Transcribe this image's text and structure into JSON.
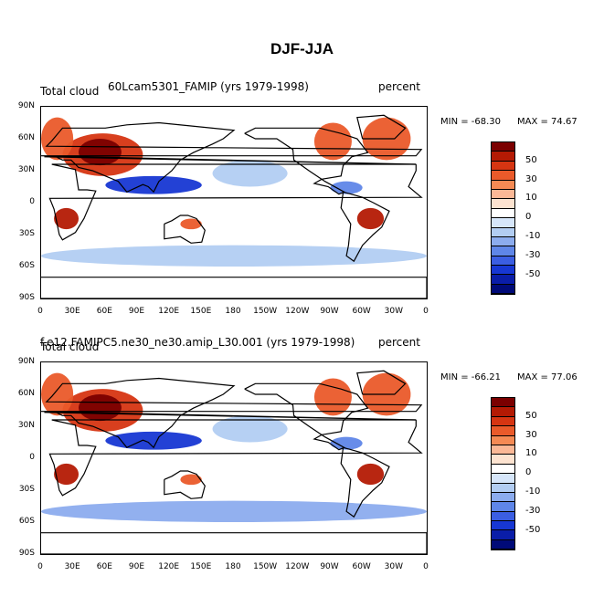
{
  "title": "DJF-JJA",
  "panels": [
    {
      "left_label": "Total cloud",
      "center_label": "60Lcam5301_FAMIP (yrs 1979-1998)",
      "right_label": "percent",
      "min": "MIN = -68.30",
      "max": "MAX =  74.67"
    },
    {
      "left_label": "Total cloud",
      "center_label": "f.e12.FAMIPC5.ne30_ne30.amip_L30.001 (yrs 1979-1998)",
      "right_label": "percent",
      "min": "MIN = -66.21",
      "max": "MAX =  77.06"
    }
  ],
  "lat_ticks": [
    "90N",
    "60N",
    "30N",
    "0",
    "30S",
    "60S",
    "90S"
  ],
  "lon_ticks": [
    "0",
    "30E",
    "60E",
    "90E",
    "120E",
    "150E",
    "180",
    "150W",
    "120W",
    "90W",
    "60W",
    "30W",
    "0"
  ],
  "colorbar": {
    "labels": [
      "50",
      "30",
      "10",
      "0",
      "-10",
      "-30",
      "-50"
    ],
    "colors": [
      "#7b0000",
      "#b41a04",
      "#d63512",
      "#ea5a2a",
      "#f58a54",
      "#fbb896",
      "#fde3d0",
      "#ffffff",
      "#d6e6fa",
      "#b2cdf2",
      "#8cacee",
      "#5f86e8",
      "#3b5ee2",
      "#1737d3",
      "#0a1da8",
      "#000a78"
    ]
  },
  "chart_data": [
    {
      "type": "heatmap",
      "title": "60Lcam5301_FAMIP (yrs 1979-1998)",
      "variable": "Total cloud",
      "units": "percent",
      "season_difference": "DJF-JJA",
      "min": -68.3,
      "max": 74.67,
      "x_range": [
        0,
        360
      ],
      "y_range": [
        -90,
        90
      ],
      "contour_levels": [
        -60,
        -50,
        -40,
        -30,
        -20,
        -10,
        -5,
        0,
        5,
        10,
        20,
        30,
        40,
        50,
        60
      ],
      "regions": [
        {
          "lon": [
            20,
            95
          ],
          "lat": [
            25,
            65
          ],
          "value": 40
        },
        {
          "lon": [
            35,
            75
          ],
          "lat": [
            35,
            60
          ],
          "value": 60
        },
        {
          "lon": [
            0,
            30
          ],
          "lat": [
            40,
            80
          ],
          "value": 30
        },
        {
          "lon": [
            255,
            290
          ],
          "lat": [
            40,
            75
          ],
          "value": 35
        },
        {
          "lon": [
            300,
            345
          ],
          "lat": [
            40,
            80
          ],
          "value": 30
        },
        {
          "lon": [
            12,
            35
          ],
          "lat": [
            -25,
            -5
          ],
          "value": 50
        },
        {
          "lon": [
            295,
            320
          ],
          "lat": [
            -25,
            -5
          ],
          "value": 50
        },
        {
          "lon": [
            130,
            150
          ],
          "lat": [
            -25,
            -15
          ],
          "value": 30
        },
        {
          "lon": [
            60,
            150
          ],
          "lat": [
            8,
            25
          ],
          "value": -45
        },
        {
          "lon": [
            160,
            230
          ],
          "lat": [
            15,
            40
          ],
          "value": -10
        },
        {
          "lon": [
            270,
            300
          ],
          "lat": [
            8,
            20
          ],
          "value": -30
        },
        {
          "lon": [
            0,
            360
          ],
          "lat": [
            -60,
            -40
          ],
          "value": -10
        }
      ]
    },
    {
      "type": "heatmap",
      "title": "f.e12.FAMIPC5.ne30_ne30.amip_L30.001 (yrs 1979-1998)",
      "variable": "Total cloud",
      "units": "percent",
      "season_difference": "DJF-JJA",
      "min": -66.21,
      "max": 77.06,
      "x_range": [
        0,
        360
      ],
      "y_range": [
        -90,
        90
      ],
      "contour_levels": [
        -60,
        -50,
        -40,
        -30,
        -20,
        -10,
        -5,
        0,
        5,
        10,
        20,
        30,
        40,
        50,
        60
      ],
      "regions": [
        {
          "lon": [
            20,
            95
          ],
          "lat": [
            25,
            65
          ],
          "value": 45
        },
        {
          "lon": [
            35,
            75
          ],
          "lat": [
            35,
            60
          ],
          "value": 60
        },
        {
          "lon": [
            0,
            30
          ],
          "lat": [
            40,
            80
          ],
          "value": 30
        },
        {
          "lon": [
            255,
            290
          ],
          "lat": [
            40,
            75
          ],
          "value": 35
        },
        {
          "lon": [
            300,
            345
          ],
          "lat": [
            40,
            80
          ],
          "value": 30
        },
        {
          "lon": [
            12,
            35
          ],
          "lat": [
            -25,
            -5
          ],
          "value": 55
        },
        {
          "lon": [
            295,
            320
          ],
          "lat": [
            -25,
            -5
          ],
          "value": 55
        },
        {
          "lon": [
            130,
            150
          ],
          "lat": [
            -25,
            -15
          ],
          "value": 35
        },
        {
          "lon": [
            60,
            150
          ],
          "lat": [
            8,
            25
          ],
          "value": -45
        },
        {
          "lon": [
            160,
            230
          ],
          "lat": [
            15,
            40
          ],
          "value": -10
        },
        {
          "lon": [
            270,
            300
          ],
          "lat": [
            8,
            20
          ],
          "value": -30
        },
        {
          "lon": [
            0,
            360
          ],
          "lat": [
            -60,
            -40
          ],
          "value": -15
        }
      ]
    }
  ]
}
